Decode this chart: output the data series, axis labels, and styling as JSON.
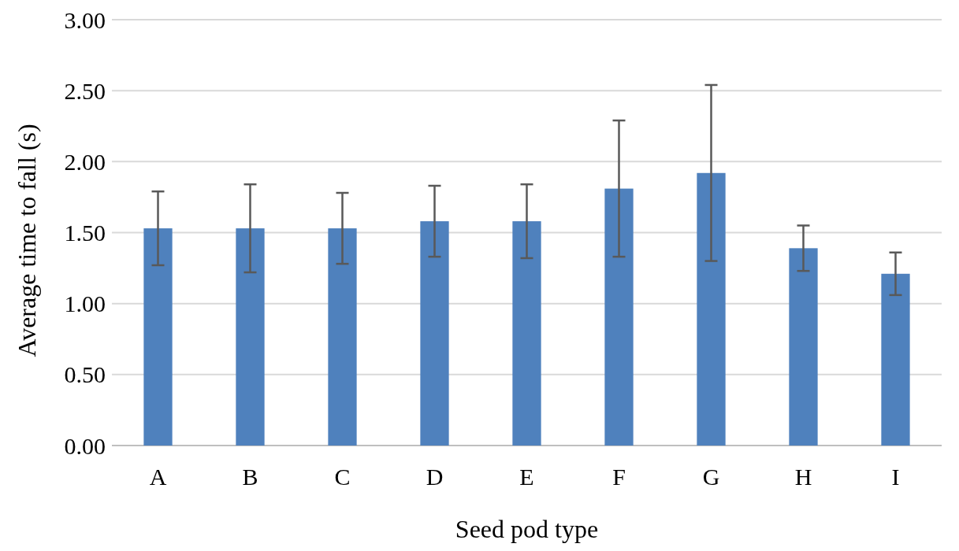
{
  "chart_data": {
    "type": "bar",
    "xlabel": "Seed pod type",
    "ylabel": "Average time to fall (s)",
    "categories": [
      "A",
      "B",
      "C",
      "D",
      "E",
      "F",
      "G",
      "H",
      "I"
    ],
    "values": [
      1.53,
      1.53,
      1.53,
      1.58,
      1.58,
      1.81,
      1.92,
      1.39,
      1.21
    ],
    "errors": [
      0.26,
      0.31,
      0.25,
      0.25,
      0.26,
      0.48,
      0.62,
      0.16,
      0.15
    ],
    "color": "#4f81bd",
    "ylim": [
      0,
      3
    ],
    "yticks": [
      {
        "value": 0,
        "label": "0.00"
      },
      {
        "value": 0.5,
        "label": "0.50"
      },
      {
        "value": 1,
        "label": "1.00"
      },
      {
        "value": 1.5,
        "label": "1.50"
      },
      {
        "value": 2,
        "label": "2.00"
      },
      {
        "value": 2.5,
        "label": "2.50"
      },
      {
        "value": 3,
        "label": "3.00"
      }
    ],
    "grid": true
  }
}
